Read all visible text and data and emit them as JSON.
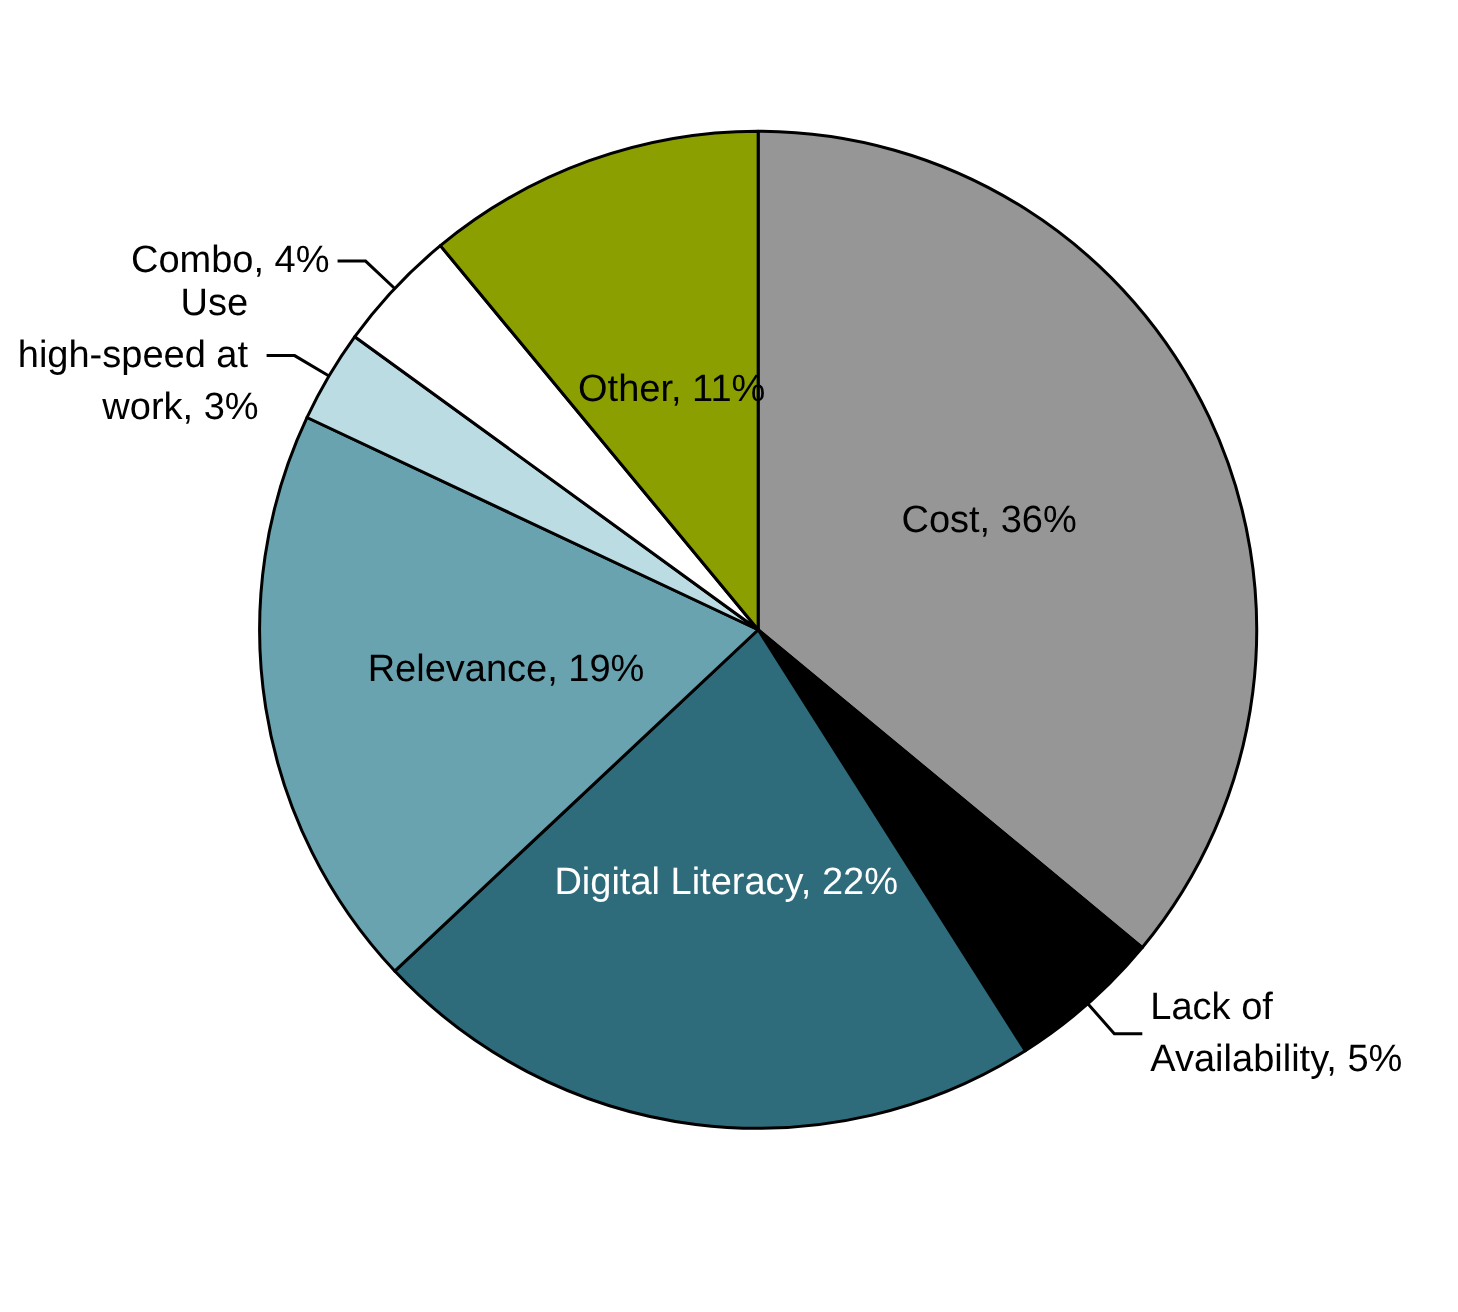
{
  "chart_data": {
    "type": "pie",
    "categories": [
      "Cost",
      "Lack of Availability",
      "Digital Literacy",
      "Relevance",
      "Use high-speed at work",
      "Combo",
      "Other"
    ],
    "values": [
      36,
      5,
      22,
      19,
      3,
      4,
      11
    ],
    "colors": [
      "#969696",
      "#000000",
      "#2e6b7b",
      "#6aa3b0",
      "#bcdce3",
      "#ffffff",
      "#8c9f00"
    ],
    "value_labels": [
      "36%",
      "5%",
      "22%",
      "19%",
      "3%",
      "4%",
      "11%"
    ],
    "legend": false
  }
}
